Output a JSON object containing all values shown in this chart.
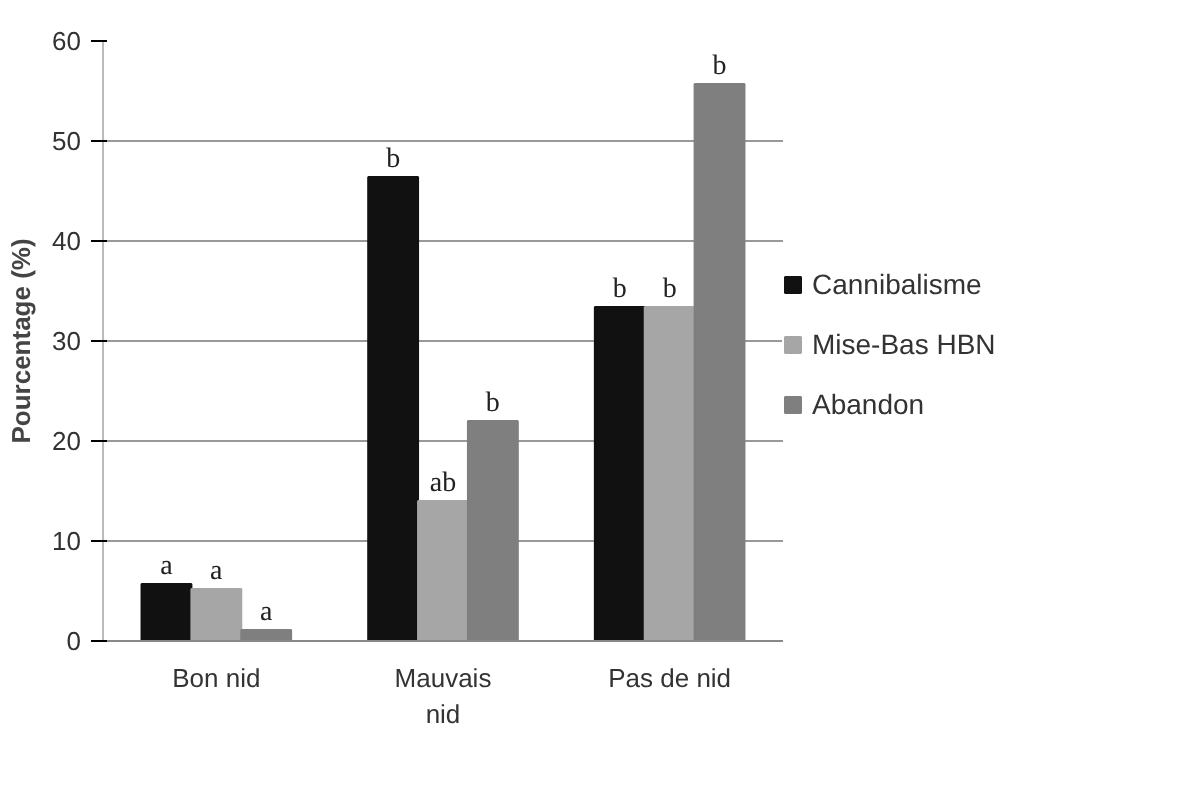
{
  "chart_data": {
    "type": "bar",
    "ylabel": "Pourcentage (%)",
    "categories": [
      "Bon nid",
      "Mauvais nid",
      "Pas de nid"
    ],
    "series": [
      {
        "name": "Cannibalisme",
        "color": "#111111",
        "values": [
          5.7,
          46.4,
          33.4
        ]
      },
      {
        "name": "Mise-Bas HBN",
        "color": "#a6a6a6",
        "values": [
          5.2,
          14,
          33.4
        ]
      },
      {
        "name": "Abandon",
        "color": "#7f7f7f",
        "values": [
          1.1,
          22,
          55.7
        ]
      }
    ],
    "ylim": [
      0,
      60
    ],
    "yticks": [
      0,
      10,
      20,
      30,
      40,
      50,
      60
    ],
    "grid": "y",
    "legend": "right",
    "annotations": [
      "a",
      "a",
      "a",
      "b",
      "ab",
      "b",
      "b",
      "b",
      "b"
    ]
  }
}
